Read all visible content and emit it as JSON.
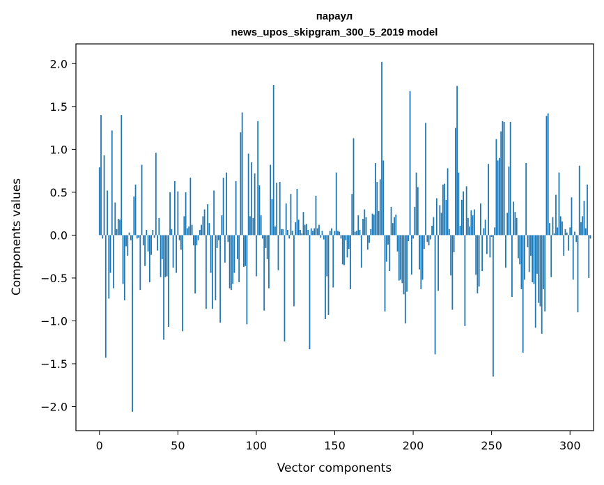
{
  "chart_data": {
    "type": "bar",
    "title": [
      "параул",
      "news_upos_skipgram_300_5_2019 model"
    ],
    "xlabel": "Vector components",
    "ylabel": "Components values",
    "xlim": [
      -15,
      315
    ],
    "ylim": [
      -2.28,
      2.23
    ],
    "xticks": [
      0,
      50,
      100,
      150,
      200,
      250,
      300
    ],
    "yticks": [
      -2.0,
      -1.5,
      -1.0,
      -0.5,
      0.0,
      0.5,
      1.0,
      1.5,
      2.0
    ],
    "ytick_labels": [
      "−2.0",
      "−1.5",
      "−1.0",
      "−0.5",
      "0.0",
      "0.5",
      "1.0",
      "1.5",
      "2.0"
    ],
    "bar_color": "#1f77b4",
    "values": [
      0.79,
      1.4,
      -0.04,
      0.93,
      -1.43,
      0.52,
      -0.74,
      -0.44,
      1.22,
      -0.62,
      0.38,
      0.07,
      0.19,
      0.18,
      1.4,
      -0.57,
      -0.76,
      -0.13,
      -0.24,
      0.03,
      -0.06,
      -2.06,
      0.45,
      0.59,
      -0.04,
      -0.03,
      -0.64,
      0.82,
      -0.12,
      -0.36,
      0.06,
      -0.19,
      -0.55,
      -0.23,
      0.06,
      -0.03,
      0.96,
      -0.18,
      0.2,
      -0.49,
      -0.28,
      -1.22,
      -0.49,
      -0.48,
      -1.07,
      0.5,
      0.07,
      -0.38,
      0.63,
      -0.44,
      0.51,
      -0.06,
      -0.17,
      -1.12,
      0.22,
      0.5,
      0.08,
      0.1,
      0.67,
      0.12,
      -0.12,
      -0.68,
      -0.12,
      -0.06,
      0.06,
      0.12,
      0.22,
      0.3,
      -0.86,
      0.36,
      0.14,
      -0.44,
      -0.86,
      0.52,
      -0.76,
      -0.15,
      -0.06,
      -1.02,
      0.23,
      0.67,
      -0.32,
      0.73,
      -0.08,
      -0.62,
      -0.64,
      -0.57,
      -0.44,
      0.63,
      -0.28,
      -0.55,
      1.2,
      1.43,
      -0.37,
      -0.36,
      -1.04,
      0.95,
      0.22,
      0.85,
      0.2,
      0.72,
      -0.48,
      1.33,
      0.58,
      0.23,
      -0.04,
      -0.88,
      -0.15,
      -0.28,
      -0.62,
      0.82,
      0.42,
      1.75,
      0.1,
      0.61,
      -0.41,
      0.62,
      0.07,
      0.07,
      -1.24,
      0.37,
      0.06,
      -0.04,
      0.48,
      0.05,
      -0.83,
      0.15,
      0.54,
      0.18,
      0.06,
      0.02,
      0.27,
      0.12,
      0.13,
      0.06,
      -1.33,
      0.08,
      0.05,
      0.08,
      0.46,
      0.08,
      0.12,
      -0.03,
      0.05,
      -0.05,
      -0.98,
      -0.48,
      -0.93,
      0.05,
      0.08,
      -0.61,
      0.05,
      0.73,
      0.05,
      0.04,
      -0.04,
      -0.34,
      -0.35,
      -0.06,
      -0.26,
      -0.16,
      -0.63,
      0.48,
      1.13,
      0.04,
      0.05,
      0.23,
      0.06,
      -0.38,
      0.19,
      0.3,
      0.21,
      -0.17,
      -0.09,
      0.07,
      0.25,
      0.24,
      0.84,
      0.62,
      0.28,
      0.65,
      2.02,
      0.87,
      -0.89,
      -0.31,
      -0.11,
      -0.42,
      0.33,
      0.14,
      0.21,
      0.24,
      -0.19,
      -0.53,
      -0.52,
      -0.56,
      -0.69,
      -1.03,
      -0.66,
      -0.07,
      1.68,
      -0.46,
      -0.04,
      0.33,
      0.73,
      0.56,
      -0.4,
      -0.63,
      -0.52,
      -0.16,
      1.31,
      -0.08,
      -0.12,
      -0.05,
      0.11,
      0.21,
      -1.39,
      0.43,
      -0.65,
      0.35,
      0.26,
      0.59,
      0.6,
      0.41,
      0.78,
      0.07,
      -0.47,
      -0.87,
      -0.2,
      1.25,
      1.74,
      0.73,
      0.11,
      0.41,
      0.51,
      -1.06,
      0.57,
      0.2,
      0.1,
      0.29,
      0.23,
      0.3,
      -0.46,
      -0.68,
      -0.6,
      0.37,
      -0.42,
      0.08,
      0.18,
      -0.22,
      0.83,
      -0.26,
      -0.02,
      -1.65,
      0.09,
      1.12,
      0.87,
      0.9,
      1.21,
      1.33,
      1.32,
      -0.38,
      0.26,
      0.8,
      1.32,
      -0.72,
      0.39,
      0.27,
      0.2,
      -0.27,
      -0.34,
      -0.63,
      -1.37,
      -0.52,
      0.84,
      -0.14,
      -0.43,
      -0.24,
      -0.55,
      -0.57,
      -1.08,
      -0.45,
      -0.79,
      -0.83,
      -1.15,
      -0.63,
      -0.89,
      1.39,
      1.42,
      0.14,
      -0.49,
      0.21,
      0.02,
      0.47,
      0.09,
      0.73,
      0.22,
      0.16,
      -0.24,
      0.07,
      0.03,
      -0.18,
      0.09,
      0.44,
      -0.52,
      0.04,
      -0.08,
      -0.9,
      0.81,
      0.15,
      0.22,
      0.4,
      0.08,
      0.59,
      -0.5,
      -0.04
    ]
  }
}
